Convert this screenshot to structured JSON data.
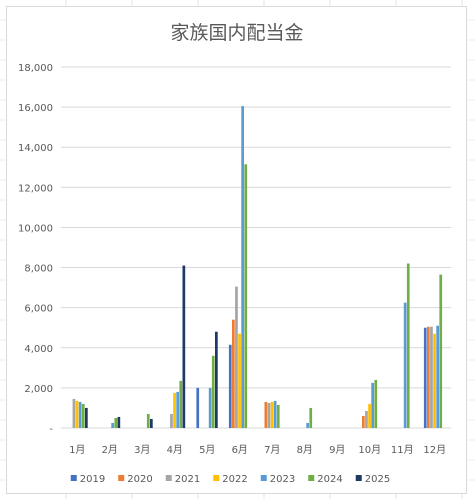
{
  "chart_data": {
    "type": "bar",
    "title": "家族国内配当金",
    "categories": [
      "1月",
      "2月",
      "3月",
      "4月",
      "5月",
      "6月",
      "7月",
      "8月",
      "9月",
      "10月",
      "11月",
      "12月"
    ],
    "ylim": [
      0,
      18000
    ],
    "yticks": [
      "-",
      "2,000",
      "4,000",
      "6,000",
      "8,000",
      "10,000",
      "12,000",
      "14,000",
      "16,000",
      "18,000"
    ],
    "grid": true,
    "legend_position": "bottom",
    "series": [
      {
        "name": "2019",
        "color": "#4472c4",
        "values": [
          0,
          0,
          0,
          0,
          2000,
          4150,
          0,
          0,
          0,
          0,
          0,
          5000
        ]
      },
      {
        "name": "2020",
        "color": "#ed7d31",
        "values": [
          0,
          0,
          0,
          0,
          0,
          5400,
          1300,
          0,
          0,
          600,
          0,
          5050
        ]
      },
      {
        "name": "2021",
        "color": "#a5a5a5",
        "values": [
          1450,
          0,
          0,
          700,
          0,
          7050,
          1250,
          0,
          0,
          850,
          0,
          5050
        ]
      },
      {
        "name": "2022",
        "color": "#ffc000",
        "values": [
          1350,
          0,
          0,
          1750,
          0,
          4700,
          1300,
          0,
          0,
          1200,
          0,
          4700
        ]
      },
      {
        "name": "2023",
        "color": "#5b9bd5",
        "values": [
          1300,
          250,
          0,
          1800,
          2000,
          16050,
          1350,
          250,
          0,
          2250,
          6250,
          5100
        ]
      },
      {
        "name": "2024",
        "color": "#70ad47",
        "values": [
          1200,
          500,
          700,
          2350,
          3600,
          13150,
          1150,
          1000,
          0,
          2400,
          8200,
          7650
        ]
      },
      {
        "name": "2025",
        "color": "#203864",
        "values": [
          1000,
          550,
          450,
          8100,
          4800,
          0,
          0,
          0,
          0,
          0,
          0,
          0
        ]
      }
    ]
  }
}
